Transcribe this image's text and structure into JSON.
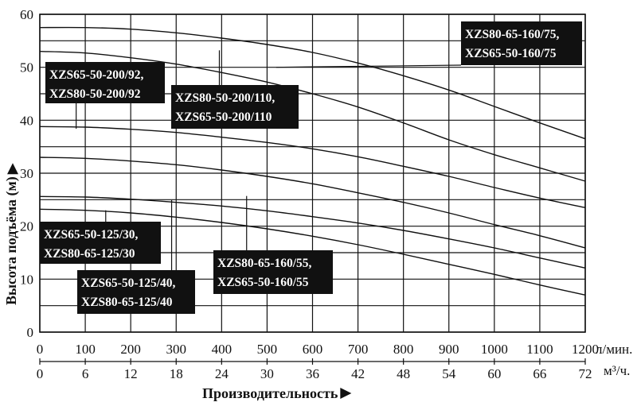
{
  "chart_data": {
    "type": "line",
    "x_axis": {
      "label": "Производительность",
      "unit": "л/мин.",
      "range": [
        0,
        1200
      ],
      "ticks": [
        "0",
        "100",
        "200",
        "300",
        "400",
        "500",
        "600",
        "700",
        "800",
        "900",
        "1000",
        "1100",
        "1200"
      ]
    },
    "x2_axis": {
      "unit": "м³/ч.",
      "range": [
        0,
        72
      ],
      "ticks": [
        "0",
        "6",
        "12",
        "18",
        "24",
        "30",
        "36",
        "42",
        "48",
        "54",
        "60",
        "66",
        "72"
      ]
    },
    "y_axis": {
      "label": "Высота подъёма (м)",
      "range": [
        0,
        60
      ],
      "ticks": [
        "0",
        "10",
        "20",
        "30",
        "40",
        "50",
        "60"
      ]
    },
    "grid": true,
    "series": [
      {
        "name": "XZS80-65-160/75, XZS65-50-160/75",
        "x": [
          0,
          100,
          200,
          300,
          400,
          500,
          600,
          700,
          800,
          900,
          1000,
          1100,
          1200
        ],
        "y": [
          57.5,
          57.5,
          57.2,
          56.5,
          55.5,
          54.3,
          52.8,
          50.8,
          48.4,
          45.7,
          42.6,
          39.5,
          36.5
        ]
      },
      {
        "name": "XZS80-50-200/110, XZS65-50-200/110",
        "x": [
          0,
          100,
          200,
          300,
          400,
          500,
          600,
          700,
          800,
          900,
          1000,
          1100,
          1200
        ],
        "y": [
          53.0,
          52.7,
          51.8,
          50.6,
          49.0,
          47.2,
          45.0,
          42.5,
          39.5,
          36.3,
          33.5,
          31.0,
          28.5
        ]
      },
      {
        "name": "XZS65-50-200/92, XZS80-50-200/92",
        "x": [
          0,
          100,
          200,
          300,
          400,
          500,
          600,
          700,
          800,
          900,
          1000,
          1100,
          1200
        ],
        "y": [
          38.8,
          38.7,
          38.3,
          37.7,
          36.8,
          35.8,
          34.6,
          33.1,
          31.3,
          29.4,
          27.3,
          25.3,
          23.5
        ]
      },
      {
        "name": "XZS80-65-160/55, XZS65-50-160/55",
        "x": [
          0,
          100,
          200,
          300,
          400,
          500,
          600,
          700,
          800,
          900,
          1000,
          1100,
          1200
        ],
        "y": [
          33.0,
          32.8,
          32.3,
          31.6,
          30.6,
          29.4,
          28.0,
          26.3,
          24.5,
          22.5,
          20.3,
          18.2,
          15.9
        ]
      },
      {
        "name": "XZS65-50-125/40, XZS80-65-125/40",
        "x": [
          0,
          100,
          200,
          300,
          400,
          500,
          600,
          700,
          800,
          900,
          1000,
          1100,
          1200
        ],
        "y": [
          25.6,
          25.5,
          25.1,
          24.5,
          23.8,
          22.9,
          21.8,
          20.6,
          19.2,
          17.6,
          15.9,
          14.0,
          12.1
        ]
      },
      {
        "name": "XZS65-50-125/30, XZS80-65-125/30",
        "x": [
          0,
          100,
          200,
          300,
          400,
          500,
          600,
          700,
          800,
          900,
          1000,
          1100,
          1200
        ],
        "y": [
          23.2,
          23.0,
          22.5,
          21.7,
          20.7,
          19.5,
          18.1,
          16.5,
          14.7,
          12.8,
          10.9,
          8.9,
          7.0
        ]
      }
    ],
    "annotations": [
      {
        "lines": [
          "XZS65-50-200/92,",
          "XZS80-50-200/92"
        ],
        "series": 2
      },
      {
        "lines": [
          "XZS80-50-200/110,",
          "XZS65-50-200/110"
        ],
        "series": 1
      },
      {
        "lines": [
          "XZS80-65-160/75,",
          "XZS65-50-160/75"
        ],
        "series": 0
      },
      {
        "lines": [
          "XZS65-50-125/30,",
          "XZS80-65-125/30"
        ],
        "series": 5
      },
      {
        "lines": [
          "XZS65-50-125/40,",
          "XZS80-65-125/40"
        ],
        "series": 4
      },
      {
        "lines": [
          "XZS80-65-160/55,",
          "XZS65-50-160/55"
        ],
        "series": 3
      }
    ]
  }
}
